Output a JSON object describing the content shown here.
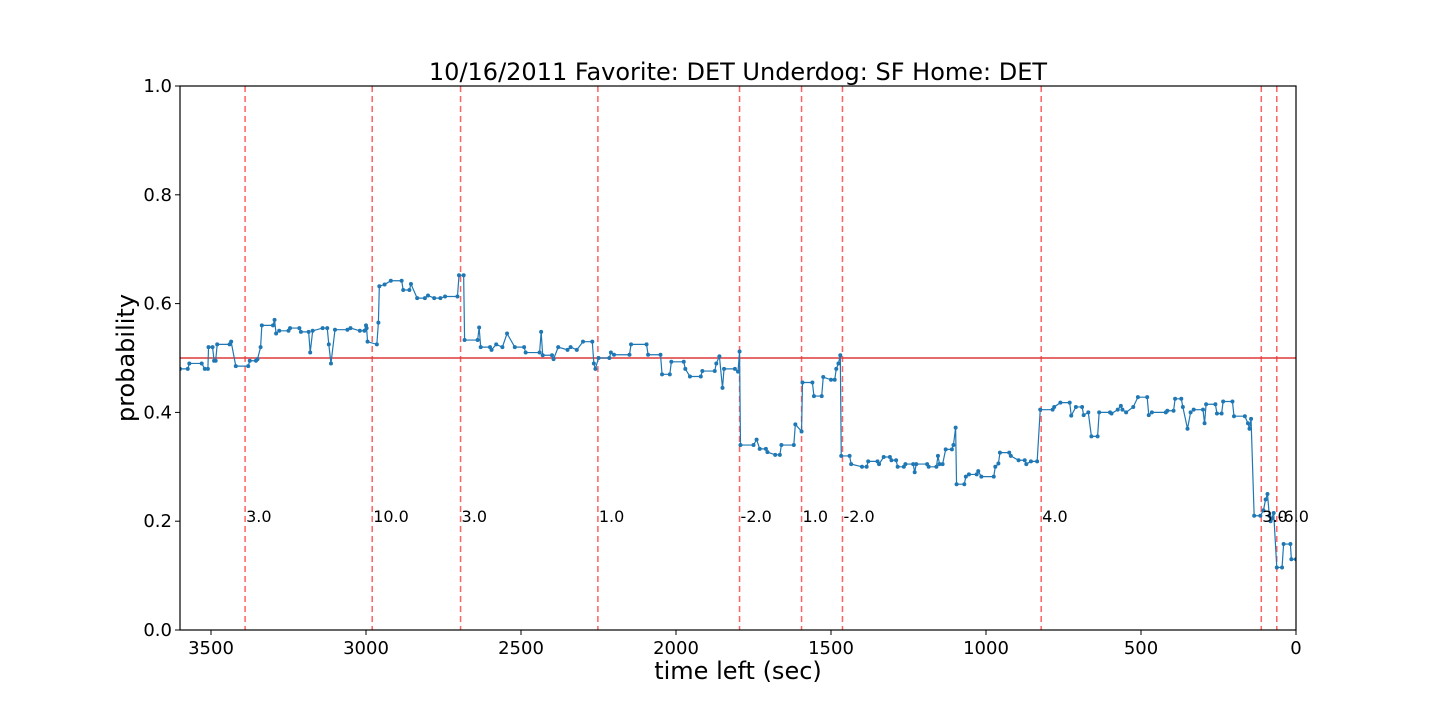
{
  "chart_data": {
    "type": "line",
    "title": "10/16/2011 Favorite: DET Underdog: SF Home: DET",
    "xlabel": "time left (sec)",
    "ylabel": "probability",
    "xlim": [
      3600,
      0
    ],
    "ylim": [
      0.0,
      1.0
    ],
    "x_ticks": [
      3500,
      3000,
      2500,
      2000,
      1500,
      1000,
      500,
      0
    ],
    "y_ticks": [
      0.0,
      0.2,
      0.4,
      0.6,
      0.8,
      1.0
    ],
    "x_tick_labels": [
      "3500",
      "3000",
      "2500",
      "2000",
      "1500",
      "1000",
      "500",
      "0"
    ],
    "y_tick_labels": [
      "0.0",
      "0.2",
      "0.4",
      "0.6",
      "0.8",
      "1.0"
    ],
    "reference_line": {
      "y": 0.5,
      "color": "#e03a3a"
    },
    "series_color": "#1f77b4",
    "vline_color": "#ff6060",
    "score_events": [
      {
        "x": 3390,
        "label": "3.0"
      },
      {
        "x": 2980,
        "label": "10.0"
      },
      {
        "x": 2695,
        "label": "3.0"
      },
      {
        "x": 2252,
        "label": "1.0"
      },
      {
        "x": 1795,
        "label": "-2.0"
      },
      {
        "x": 1595,
        "label": "1.0"
      },
      {
        "x": 1463,
        "label": "-2.0"
      },
      {
        "x": 822,
        "label": "4.0"
      },
      {
        "x": 112,
        "label": "3.0"
      },
      {
        "x": 62,
        "label": "-6.0"
      }
    ],
    "series": [
      {
        "points": [
          [
            3600,
            0.48
          ],
          [
            3575,
            0.48
          ],
          [
            3570,
            0.49
          ],
          [
            3530,
            0.49
          ],
          [
            3520,
            0.48
          ],
          [
            3510,
            0.48
          ],
          [
            3508,
            0.52
          ],
          [
            3495,
            0.52
          ],
          [
            3490,
            0.495
          ],
          [
            3485,
            0.495
          ],
          [
            3480,
            0.525
          ],
          [
            3440,
            0.525
          ],
          [
            3435,
            0.53
          ],
          [
            3420,
            0.485
          ],
          [
            3380,
            0.485
          ],
          [
            3375,
            0.495
          ],
          [
            3355,
            0.495
          ],
          [
            3350,
            0.498
          ],
          [
            3340,
            0.52
          ],
          [
            3336,
            0.56
          ],
          [
            3300,
            0.56
          ],
          [
            3295,
            0.57
          ],
          [
            3290,
            0.545
          ],
          [
            3280,
            0.55
          ],
          [
            3250,
            0.55
          ],
          [
            3245,
            0.555
          ],
          [
            3215,
            0.555
          ],
          [
            3210,
            0.548
          ],
          [
            3185,
            0.548
          ],
          [
            3180,
            0.51
          ],
          [
            3172,
            0.55
          ],
          [
            3140,
            0.555
          ],
          [
            3125,
            0.555
          ],
          [
            3120,
            0.525
          ],
          [
            3113,
            0.49
          ],
          [
            3100,
            0.552
          ],
          [
            3060,
            0.552
          ],
          [
            3050,
            0.555
          ],
          [
            3020,
            0.55
          ],
          [
            3005,
            0.55
          ],
          [
            3000,
            0.56
          ],
          [
            2998,
            0.555
          ],
          [
            2995,
            0.53
          ],
          [
            2965,
            0.525
          ],
          [
            2960,
            0.565
          ],
          [
            2957,
            0.632
          ],
          [
            2940,
            0.635
          ],
          [
            2920,
            0.642
          ],
          [
            2885,
            0.642
          ],
          [
            2880,
            0.625
          ],
          [
            2860,
            0.625
          ],
          [
            2855,
            0.636
          ],
          [
            2835,
            0.61
          ],
          [
            2810,
            0.61
          ],
          [
            2800,
            0.615
          ],
          [
            2780,
            0.61
          ],
          [
            2760,
            0.61
          ],
          [
            2745,
            0.613
          ],
          [
            2705,
            0.613
          ],
          [
            2700,
            0.652
          ],
          [
            2685,
            0.652
          ],
          [
            2682,
            0.533
          ],
          [
            2640,
            0.533
          ],
          [
            2635,
            0.556
          ],
          [
            2630,
            0.52
          ],
          [
            2600,
            0.52
          ],
          [
            2595,
            0.515
          ],
          [
            2580,
            0.525
          ],
          [
            2560,
            0.52
          ],
          [
            2545,
            0.545
          ],
          [
            2520,
            0.52
          ],
          [
            2490,
            0.52
          ],
          [
            2485,
            0.51
          ],
          [
            2440,
            0.51
          ],
          [
            2435,
            0.548
          ],
          [
            2430,
            0.505
          ],
          [
            2400,
            0.505
          ],
          [
            2395,
            0.498
          ],
          [
            2380,
            0.52
          ],
          [
            2350,
            0.515
          ],
          [
            2340,
            0.52
          ],
          [
            2320,
            0.515
          ],
          [
            2300,
            0.53
          ],
          [
            2270,
            0.53
          ],
          [
            2265,
            0.49
          ],
          [
            2260,
            0.48
          ],
          [
            2250,
            0.5
          ],
          [
            2215,
            0.5
          ],
          [
            2210,
            0.51
          ],
          [
            2200,
            0.506
          ],
          [
            2150,
            0.506
          ],
          [
            2145,
            0.525
          ],
          [
            2095,
            0.525
          ],
          [
            2090,
            0.506
          ],
          [
            2050,
            0.506
          ],
          [
            2045,
            0.47
          ],
          [
            2020,
            0.47
          ],
          [
            2015,
            0.493
          ],
          [
            1975,
            0.493
          ],
          [
            1970,
            0.48
          ],
          [
            1955,
            0.466
          ],
          [
            1920,
            0.466
          ],
          [
            1915,
            0.476
          ],
          [
            1875,
            0.476
          ],
          [
            1870,
            0.49
          ],
          [
            1860,
            0.503
          ],
          [
            1850,
            0.445
          ],
          [
            1845,
            0.48
          ],
          [
            1810,
            0.48
          ],
          [
            1800,
            0.475
          ],
          [
            1795,
            0.512
          ],
          [
            1792,
            0.34
          ],
          [
            1750,
            0.34
          ],
          [
            1740,
            0.35
          ],
          [
            1730,
            0.333
          ],
          [
            1710,
            0.333
          ],
          [
            1705,
            0.327
          ],
          [
            1680,
            0.322
          ],
          [
            1665,
            0.322
          ],
          [
            1660,
            0.34
          ],
          [
            1620,
            0.34
          ],
          [
            1615,
            0.378
          ],
          [
            1595,
            0.365
          ],
          [
            1592,
            0.455
          ],
          [
            1560,
            0.455
          ],
          [
            1555,
            0.43
          ],
          [
            1530,
            0.43
          ],
          [
            1525,
            0.465
          ],
          [
            1500,
            0.46
          ],
          [
            1488,
            0.46
          ],
          [
            1483,
            0.48
          ],
          [
            1476,
            0.49
          ],
          [
            1470,
            0.505
          ],
          [
            1467,
            0.32
          ],
          [
            1440,
            0.32
          ],
          [
            1435,
            0.305
          ],
          [
            1400,
            0.3
          ],
          [
            1385,
            0.3
          ],
          [
            1380,
            0.31
          ],
          [
            1350,
            0.31
          ],
          [
            1345,
            0.305
          ],
          [
            1330,
            0.318
          ],
          [
            1310,
            0.318
          ],
          [
            1305,
            0.312
          ],
          [
            1290,
            0.312
          ],
          [
            1285,
            0.3
          ],
          [
            1265,
            0.3
          ],
          [
            1260,
            0.305
          ],
          [
            1235,
            0.305
          ],
          [
            1230,
            0.29
          ],
          [
            1225,
            0.305
          ],
          [
            1190,
            0.305
          ],
          [
            1185,
            0.3
          ],
          [
            1160,
            0.3
          ],
          [
            1155,
            0.32
          ],
          [
            1150,
            0.305
          ],
          [
            1140,
            0.305
          ],
          [
            1130,
            0.332
          ],
          [
            1110,
            0.332
          ],
          [
            1105,
            0.34
          ],
          [
            1098,
            0.372
          ],
          [
            1095,
            0.268
          ],
          [
            1070,
            0.268
          ],
          [
            1065,
            0.282
          ],
          [
            1055,
            0.286
          ],
          [
            1030,
            0.286
          ],
          [
            1025,
            0.292
          ],
          [
            1015,
            0.282
          ],
          [
            975,
            0.282
          ],
          [
            970,
            0.3
          ],
          [
            960,
            0.306
          ],
          [
            955,
            0.326
          ],
          [
            925,
            0.326
          ],
          [
            920,
            0.32
          ],
          [
            895,
            0.312
          ],
          [
            875,
            0.312
          ],
          [
            870,
            0.305
          ],
          [
            855,
            0.31
          ],
          [
            835,
            0.31
          ],
          [
            825,
            0.405
          ],
          [
            785,
            0.405
          ],
          [
            780,
            0.41
          ],
          [
            760,
            0.418
          ],
          [
            730,
            0.418
          ],
          [
            725,
            0.394
          ],
          [
            710,
            0.41
          ],
          [
            690,
            0.41
          ],
          [
            685,
            0.395
          ],
          [
            670,
            0.4
          ],
          [
            660,
            0.356
          ],
          [
            640,
            0.356
          ],
          [
            635,
            0.4
          ],
          [
            600,
            0.4
          ],
          [
            595,
            0.398
          ],
          [
            575,
            0.405
          ],
          [
            565,
            0.412
          ],
          [
            560,
            0.405
          ],
          [
            548,
            0.4
          ],
          [
            525,
            0.41
          ],
          [
            510,
            0.428
          ],
          [
            480,
            0.428
          ],
          [
            475,
            0.395
          ],
          [
            465,
            0.4
          ],
          [
            420,
            0.4
          ],
          [
            415,
            0.403
          ],
          [
            395,
            0.403
          ],
          [
            390,
            0.425
          ],
          [
            370,
            0.425
          ],
          [
            365,
            0.41
          ],
          [
            350,
            0.37
          ],
          [
            340,
            0.4
          ],
          [
            330,
            0.405
          ],
          [
            300,
            0.405
          ],
          [
            295,
            0.38
          ],
          [
            290,
            0.415
          ],
          [
            260,
            0.415
          ],
          [
            255,
            0.398
          ],
          [
            240,
            0.398
          ],
          [
            235,
            0.42
          ],
          [
            205,
            0.42
          ],
          [
            200,
            0.393
          ],
          [
            165,
            0.393
          ],
          [
            155,
            0.38
          ],
          [
            150,
            0.37
          ],
          [
            145,
            0.388
          ],
          [
            135,
            0.21
          ],
          [
            115,
            0.21
          ],
          [
            105,
            0.22
          ],
          [
            98,
            0.24
          ],
          [
            92,
            0.25
          ],
          [
            86,
            0.21
          ],
          [
            82,
            0.2
          ],
          [
            78,
            0.205
          ],
          [
            72,
            0.215
          ],
          [
            62,
            0.115
          ],
          [
            45,
            0.115
          ],
          [
            40,
            0.158
          ],
          [
            18,
            0.158
          ],
          [
            15,
            0.13
          ],
          [
            0,
            0.13
          ]
        ]
      }
    ]
  }
}
